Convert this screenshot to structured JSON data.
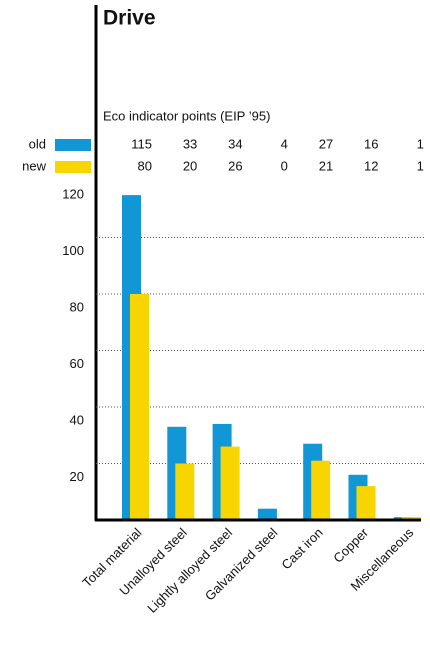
{
  "chart_data": {
    "type": "bar",
    "title": "Drive",
    "subtitle": "Eco indicator points (EIP ’95)",
    "categories": [
      "Total material",
      "Unalloyed steel",
      "Lightly alloyed steel",
      "Galvanized steel",
      "Cast iron",
      "Copper",
      "Miscellaneous"
    ],
    "series": [
      {
        "name": "old",
        "color": "#1196d6",
        "values": [
          115,
          33,
          34,
          4,
          27,
          16,
          1
        ]
      },
      {
        "name": "new",
        "color": "#f7d600",
        "values": [
          80,
          20,
          26,
          0,
          21,
          12,
          1
        ]
      }
    ],
    "ylim": [
      0,
      120
    ],
    "yticks": [
      20,
      40,
      60,
      80,
      100,
      120
    ],
    "grid": true
  }
}
